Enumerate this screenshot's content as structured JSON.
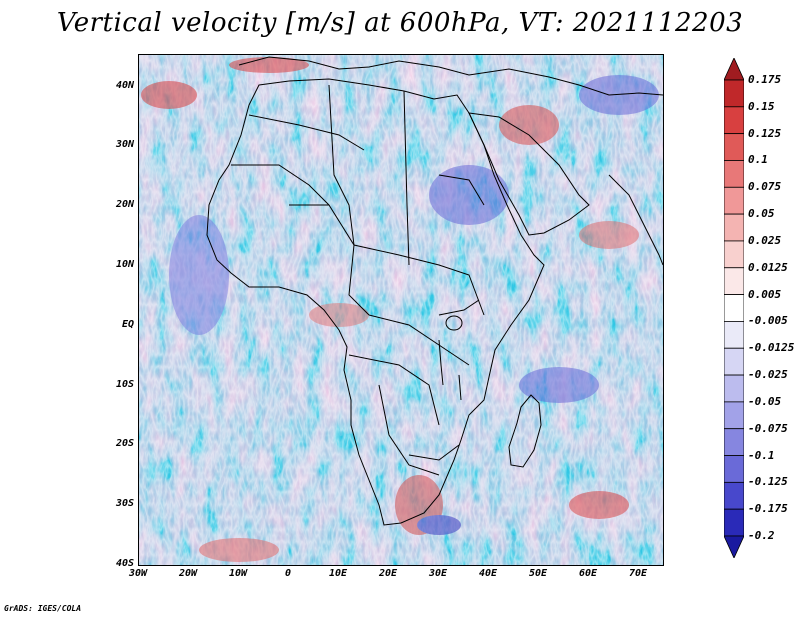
{
  "title": "Vertical velocity [m/s] at 600hPa, VT: 2021112203",
  "footer": "GrADS: IGES/COLA",
  "map": {
    "projection": "lat-lon",
    "lon_range": [
      -30,
      75
    ],
    "lat_range": [
      -40,
      45
    ],
    "lat_ticks": [
      {
        "value": 40,
        "label": "40N"
      },
      {
        "value": 30,
        "label": "30N"
      },
      {
        "value": 20,
        "label": "20N"
      },
      {
        "value": 10,
        "label": "10N"
      },
      {
        "value": 0,
        "label": "EQ"
      },
      {
        "value": -10,
        "label": "10S"
      },
      {
        "value": -20,
        "label": "20S"
      },
      {
        "value": -30,
        "label": "30S"
      },
      {
        "value": -40,
        "label": "40S"
      }
    ],
    "lon_ticks": [
      {
        "value": -30,
        "label": "30W"
      },
      {
        "value": -20,
        "label": "20W"
      },
      {
        "value": -10,
        "label": "10W"
      },
      {
        "value": 0,
        "label": "0"
      },
      {
        "value": 10,
        "label": "10E"
      },
      {
        "value": 20,
        "label": "20E"
      },
      {
        "value": 30,
        "label": "30E"
      },
      {
        "value": 40,
        "label": "40E"
      },
      {
        "value": 50,
        "label": "50E"
      },
      {
        "value": 60,
        "label": "60E"
      },
      {
        "value": 70,
        "label": "70E"
      }
    ]
  },
  "colorbar": {
    "levels": [
      "0.175",
      "0.15",
      "0.125",
      "0.1",
      "0.075",
      "0.05",
      "0.025",
      "0.0125",
      "0.005",
      "-0.005",
      "-0.0125",
      "-0.025",
      "-0.05",
      "-0.075",
      "-0.1",
      "-0.125",
      "-0.175",
      "-0.2"
    ],
    "colors": [
      "#a01c20",
      "#c0282a",
      "#d84040",
      "#e05a58",
      "#e87878",
      "#f09898",
      "#f4b4b2",
      "#f8d0ce",
      "#fbe8e8",
      "#ffffff",
      "#eaeaf8",
      "#d6d6f4",
      "#bcbcee",
      "#a2a2e8",
      "#8686e0",
      "#6a6ad8",
      "#4848cc",
      "#2a2ab8",
      "#1a1aa0"
    ]
  }
}
